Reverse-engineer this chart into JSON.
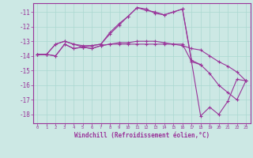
{
  "xlabel": "Windchill (Refroidissement éolien,°C)",
  "bg_color": "#cce8e4",
  "line_color": "#993399",
  "grid_color": "#aad8d0",
  "xlim": [
    -0.5,
    23.5
  ],
  "ylim": [
    -18.6,
    -10.4
  ],
  "yticks": [
    -18,
    -17,
    -16,
    -15,
    -14,
    -13,
    -12,
    -11
  ],
  "xticks": [
    0,
    1,
    2,
    3,
    4,
    5,
    6,
    7,
    8,
    9,
    10,
    11,
    12,
    13,
    14,
    15,
    16,
    17,
    18,
    19,
    20,
    21,
    22,
    23
  ],
  "series": [
    {
      "x": [
        0,
        1,
        2,
        3,
        4,
        5,
        6,
        7,
        8,
        9,
        10,
        11,
        12,
        13,
        14,
        15,
        16,
        17,
        18,
        19,
        20,
        21,
        22,
        23
      ],
      "y": [
        -13.9,
        -13.9,
        -13.2,
        -13.0,
        -13.2,
        -13.3,
        -13.3,
        -13.2,
        -12.4,
        -11.8,
        -11.3,
        -10.7,
        -10.8,
        -11.1,
        -11.2,
        -11.0,
        -10.8,
        -14.4,
        -18.1,
        -17.5,
        -18.0,
        -17.1,
        -15.6,
        -15.7
      ]
    },
    {
      "x": [
        0,
        1,
        2,
        3,
        4,
        5,
        6,
        7,
        8,
        9,
        10,
        11,
        12,
        13,
        14,
        15,
        16,
        17,
        18,
        19,
        20,
        21,
        22,
        23
      ],
      "y": [
        -13.9,
        -13.9,
        -14.0,
        -13.2,
        -13.5,
        -13.4,
        -13.5,
        -13.3,
        -13.2,
        -13.1,
        -13.1,
        -13.0,
        -13.0,
        -13.0,
        -13.1,
        -13.2,
        -13.3,
        -13.5,
        -13.6,
        -14.0,
        -14.4,
        -14.7,
        -15.1,
        -15.7
      ]
    },
    {
      "x": [
        0,
        1,
        2,
        3,
        4,
        5,
        6,
        7,
        8,
        9,
        10,
        11,
        12,
        13,
        14,
        15,
        16,
        17,
        18
      ],
      "y": [
        -13.9,
        -13.9,
        -13.2,
        -13.0,
        -13.2,
        -13.4,
        -13.3,
        -13.2,
        -12.5,
        -11.9,
        -11.3,
        -10.7,
        -10.9,
        -11.0,
        -11.2,
        -11.0,
        -10.8,
        -14.3,
        -14.6
      ]
    },
    {
      "x": [
        0,
        1,
        2,
        3,
        4,
        5,
        6,
        7,
        8,
        9,
        10,
        11,
        12,
        13,
        14,
        15,
        16,
        17,
        18,
        19,
        20,
        21,
        22,
        23
      ],
      "y": [
        -13.9,
        -13.9,
        -14.0,
        -13.2,
        -13.5,
        -13.4,
        -13.5,
        -13.3,
        -13.2,
        -13.2,
        -13.2,
        -13.2,
        -13.2,
        -13.2,
        -13.2,
        -13.2,
        -13.2,
        -14.4,
        -14.6,
        -15.2,
        -16.0,
        -16.5,
        -17.0,
        -15.7
      ]
    }
  ]
}
